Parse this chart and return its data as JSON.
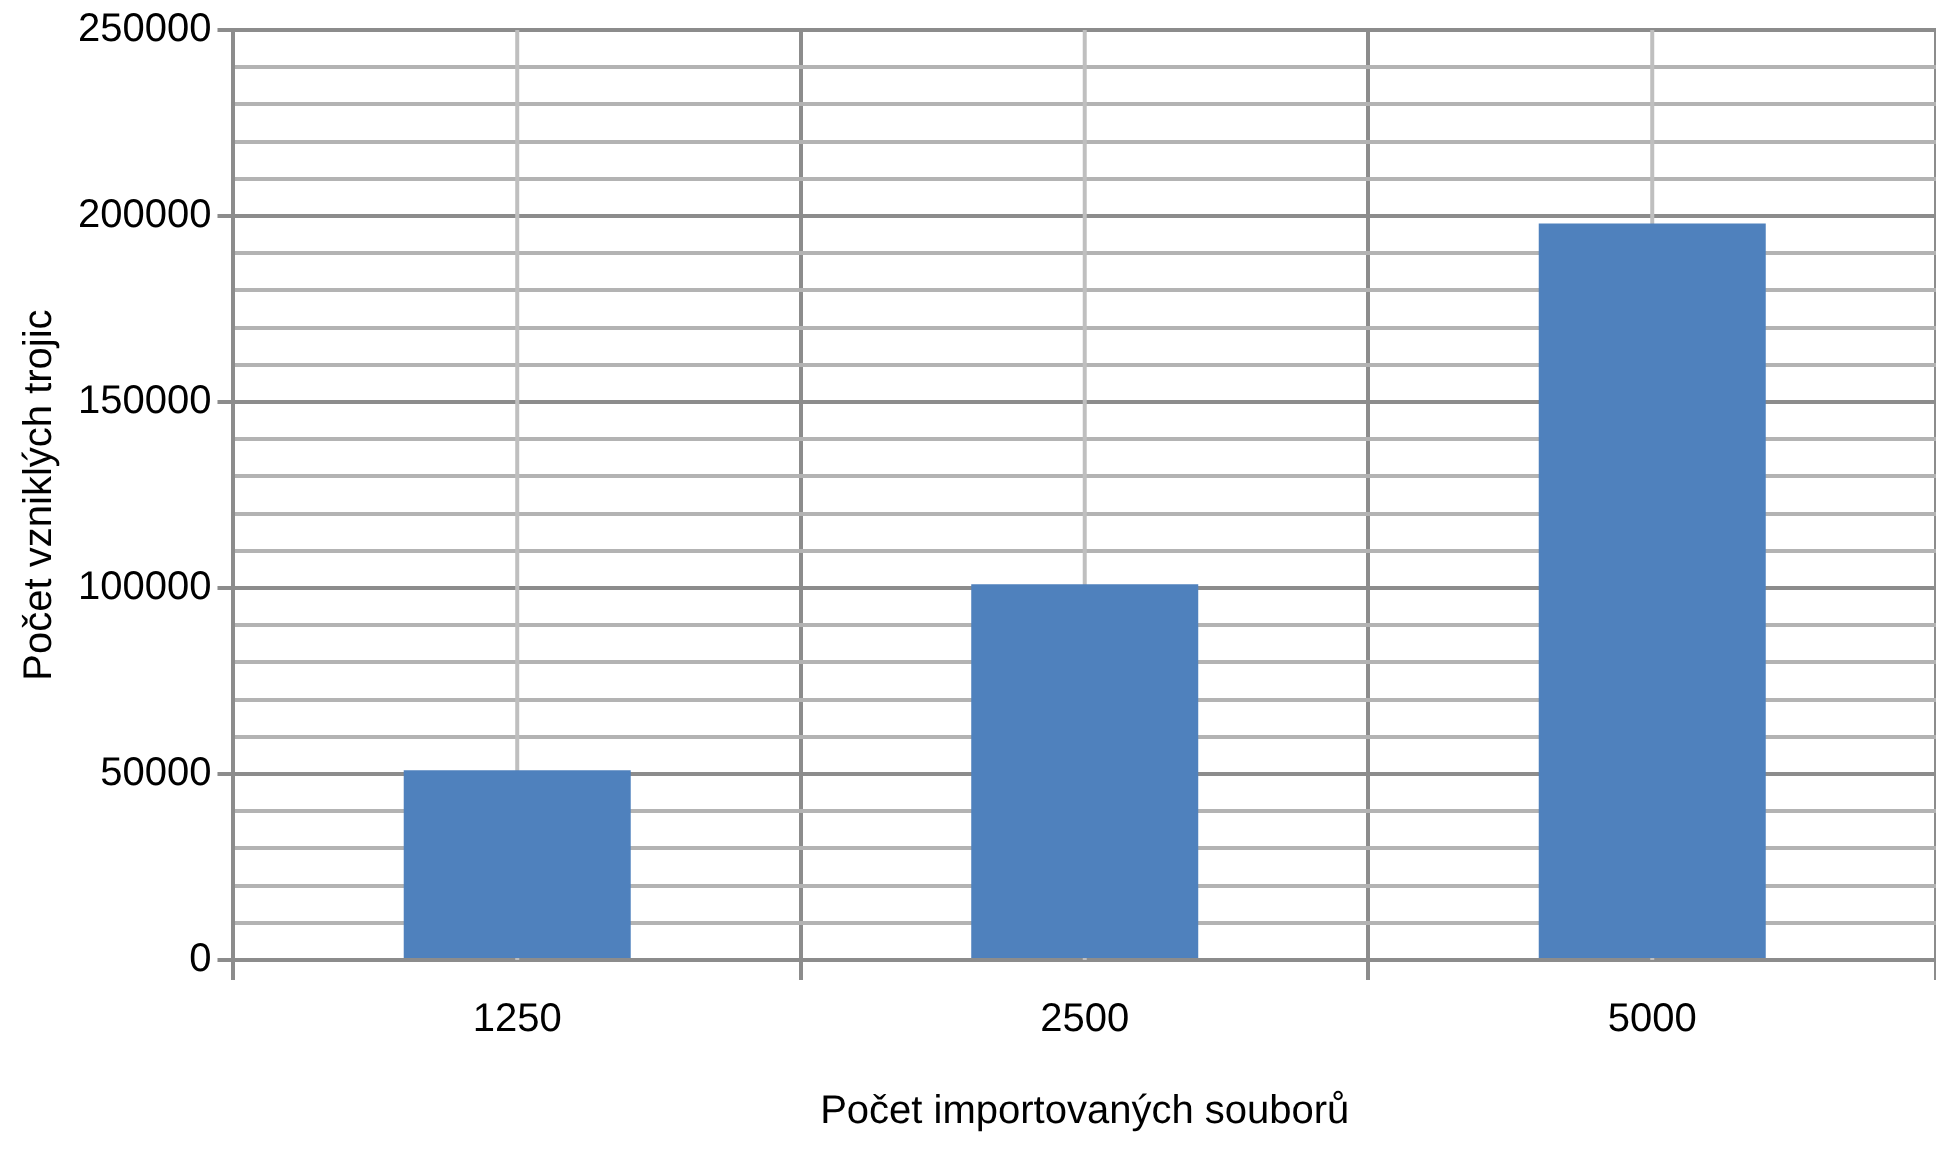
{
  "chart_data": {
    "type": "bar",
    "xlabel": "Počet importovaných souborů",
    "ylabel": "Počet vzniklých trojic",
    "categories": [
      "1250",
      "2500",
      "5000"
    ],
    "values": [
      51000,
      101000,
      198000
    ],
    "color": "#4f81bd",
    "ylim": [
      0,
      250000
    ],
    "yticks": [
      0,
      {
        "value": 10000,
        "label": null
      },
      {
        "value": 20000,
        "label": null
      },
      {
        "value": 30000,
        "label": null
      },
      {
        "value": 40000,
        "label": null
      },
      50000,
      {
        "value": 60000,
        "label": null
      },
      {
        "value": 70000,
        "label": null
      },
      {
        "value": 80000,
        "label": null
      },
      {
        "value": 90000,
        "label": null
      },
      100000,
      {
        "value": 110000,
        "label": null
      },
      {
        "value": 120000,
        "label": null
      },
      {
        "value": 130000,
        "label": null
      },
      {
        "value": 140000,
        "label": null
      },
      150000,
      {
        "value": 160000,
        "label": null
      },
      {
        "value": 170000,
        "label": null
      },
      {
        "value": 180000,
        "label": null
      },
      {
        "value": 190000,
        "label": null
      },
      200000,
      {
        "value": 210000,
        "label": null
      },
      {
        "value": 220000,
        "label": null
      },
      {
        "value": 230000,
        "label": null
      },
      {
        "value": 240000,
        "label": null
      },
      250000
    ],
    "grid": true,
    "legend": false
  }
}
